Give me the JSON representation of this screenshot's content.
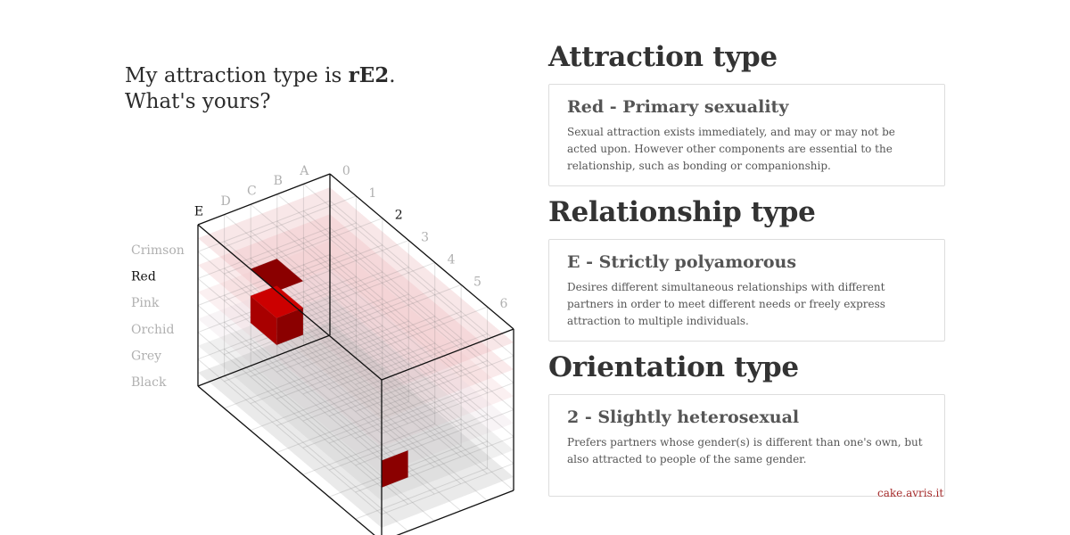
{
  "headline": {
    "prefix": "My attraction type is ",
    "code": "rE2",
    "suffix": ".",
    "line2": "What's yours?"
  },
  "cube": {
    "row_labels": [
      "Crimson",
      "Red",
      "Pink",
      "Orchid",
      "Grey",
      "Black"
    ],
    "relationship_labels": [
      "A",
      "B",
      "C",
      "D",
      "E"
    ],
    "orientation_labels": [
      "0",
      "1",
      "2",
      "3",
      "4",
      "5",
      "6"
    ],
    "selected": {
      "row": "Red",
      "relationship": "E",
      "orientation": "2"
    },
    "colors": {
      "primary": "#cc0000",
      "dark": "#8b0000",
      "mid": "#a80000"
    }
  },
  "sections": [
    {
      "heading": "Attraction type",
      "card_title": "Red - Primary sexuality",
      "card_desc": "Sexual attraction exists immediately, and may or may not be acted upon. However other components are essential to the relationship, such as bonding or companionship."
    },
    {
      "heading": "Relationship type",
      "card_title": "E - Strictly polyamorous",
      "card_desc": "Desires different simultaneous relationships with different partners in order to meet different needs or freely express attraction to multiple individuals."
    },
    {
      "heading": "Orientation type",
      "card_title": "2 - Slightly heterosexual",
      "card_desc": "Prefers partners whose gender(s) is different than one's own, but also attracted to people of the same gender."
    }
  ],
  "credit": "cake.avris.it"
}
